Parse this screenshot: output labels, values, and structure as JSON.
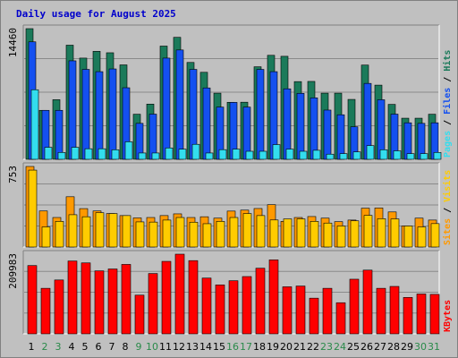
{
  "title": "Daily usage for August 2025",
  "colors": {
    "background": "#c0c0c0",
    "plot_bg": "#c0c0c0",
    "grid": "#8a8a8a",
    "title": "#0000cc",
    "hits": "#1b7a5a",
    "files": "#1450f0",
    "pages": "#33ddee",
    "visits": "#ffcc00",
    "sites": "#ff9900",
    "kbytes": "#ff0000",
    "weekend_label": "#2a8a4a",
    "weekday_label": "#000000"
  },
  "chart_data": [
    {
      "type": "bar",
      "name": "hits-files-pages",
      "ymax_label": "14460",
      "ylim": [
        0,
        14460
      ],
      "right_labels": [
        {
          "text": "Pages",
          "color": "#33ddee"
        },
        {
          "text": " / ",
          "color": "#000000"
        },
        {
          "text": "Files",
          "color": "#1450f0"
        },
        {
          "text": " / ",
          "color": "#000000"
        },
        {
          "text": "Hits",
          "color": "#1b7a5a"
        }
      ],
      "series": [
        {
          "name": "Hits",
          "color": "#1b7a5a",
          "values": [
            14460,
            5420,
            6600,
            12630,
            11200,
            11950,
            11790,
            10450,
            4990,
            6110,
            12530,
            13500,
            10720,
            9630,
            7320,
            6310,
            6320,
            10240,
            11510,
            11400,
            8600,
            8620,
            7320,
            7320,
            6630,
            10430,
            8210,
            6080,
            4550,
            4550,
            4990
          ]
        },
        {
          "name": "Files",
          "color": "#1450f0",
          "values": [
            13000,
            5420,
            5420,
            10900,
            9950,
            9700,
            10000,
            7920,
            3980,
            5000,
            11200,
            12100,
            9950,
            7900,
            5780,
            6300,
            5780,
            9950,
            9700,
            7800,
            7300,
            6800,
            5450,
            4930,
            3600,
            8400,
            6590,
            5000,
            4040,
            3980,
            4040
          ]
        },
        {
          "name": "Pages",
          "color": "#33ddee",
          "values": [
            7700,
            1330,
            760,
            1330,
            1170,
            1170,
            1060,
            1940,
            700,
            700,
            1260,
            1120,
            1660,
            700,
            1070,
            1130,
            890,
            890,
            1630,
            1130,
            890,
            1000,
            570,
            630,
            820,
            1520,
            1060,
            940,
            630,
            630,
            760
          ]
        }
      ]
    },
    {
      "type": "bar",
      "name": "sites-visits",
      "ymax_label": "753",
      "ylim": [
        0,
        753
      ],
      "right_labels": [
        {
          "text": "Sites",
          "color": "#ff9900"
        },
        {
          "text": " / ",
          "color": "#000000"
        },
        {
          "text": "Visits",
          "color": "#ffcc00"
        }
      ],
      "series": [
        {
          "name": "Sites",
          "color": "#ff9900",
          "values": [
            753,
            337,
            276,
            470,
            359,
            337,
            313,
            294,
            272,
            276,
            294,
            310,
            276,
            283,
            270,
            336,
            345,
            360,
            396,
            240,
            276,
            285,
            270,
            237,
            252,
            363,
            365,
            328,
            197,
            270,
            252
          ]
        },
        {
          "name": "Visits",
          "color": "#ffcc00",
          "values": [
            719,
            188,
            240,
            302,
            283,
            321,
            313,
            294,
            235,
            233,
            252,
            276,
            232,
            218,
            240,
            276,
            313,
            294,
            253,
            263,
            263,
            240,
            224,
            197,
            245,
            296,
            265,
            263,
            197,
            188,
            219
          ]
        }
      ]
    },
    {
      "type": "bar",
      "name": "kbytes",
      "ymax_label": "209983",
      "ylim": [
        0,
        209983
      ],
      "right_labels": [
        {
          "text": "KBytes",
          "color": "#ff0000"
        }
      ],
      "series": [
        {
          "name": "KBytes",
          "color": "#ff0000",
          "values": [
            180000,
            120000,
            142000,
            192000,
            187000,
            166000,
            171000,
            183000,
            102000,
            159000,
            191000,
            209983,
            193000,
            147000,
            129000,
            140000,
            151000,
            173000,
            195000,
            124000,
            126000,
            94000,
            120000,
            82000,
            144000,
            168000,
            120000,
            125000,
            96000,
            105000,
            104000
          ]
        }
      ]
    }
  ],
  "days": [
    "1",
    "2",
    "3",
    "4",
    "5",
    "6",
    "7",
    "8",
    "9",
    "10",
    "11",
    "12",
    "13",
    "14",
    "15",
    "16",
    "17",
    "18",
    "19",
    "20",
    "21",
    "22",
    "23",
    "24",
    "25",
    "26",
    "27",
    "28",
    "29",
    "30",
    "31"
  ],
  "weekend_days": [
    2,
    3,
    9,
    10,
    16,
    17,
    23,
    24,
    30,
    31
  ]
}
